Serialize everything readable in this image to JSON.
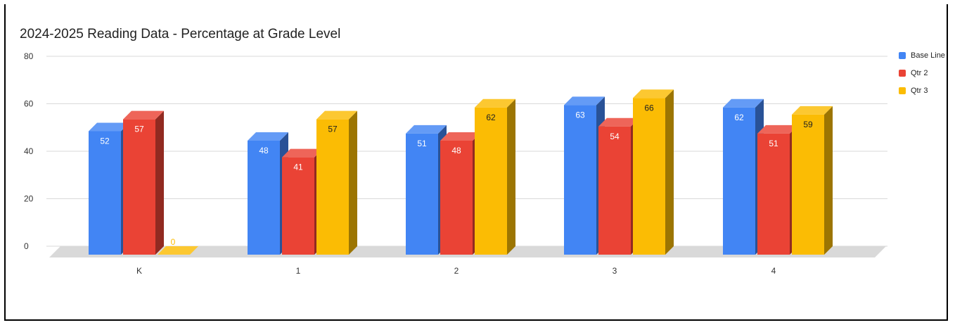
{
  "chart_data": {
    "type": "bar",
    "title": "2024-2025 Reading Data - Percentage at Grade Level",
    "categories": [
      "K",
      "1",
      "2",
      "3",
      "4"
    ],
    "series": [
      {
        "name": "Base Line",
        "values": [
          52,
          48,
          51,
          63,
          62
        ],
        "color": "#4285F4"
      },
      {
        "name": "Qtr 2",
        "values": [
          57,
          41,
          48,
          54,
          51
        ],
        "color": "#EA4335"
      },
      {
        "name": "Qtr 3",
        "values": [
          0,
          57,
          62,
          66,
          59
        ],
        "color": "#FBBC04"
      }
    ],
    "yticks": [
      0,
      20,
      40,
      60,
      80
    ],
    "ylim": [
      0,
      80
    ],
    "grid": true,
    "legend_position": "right",
    "three_d": true
  }
}
